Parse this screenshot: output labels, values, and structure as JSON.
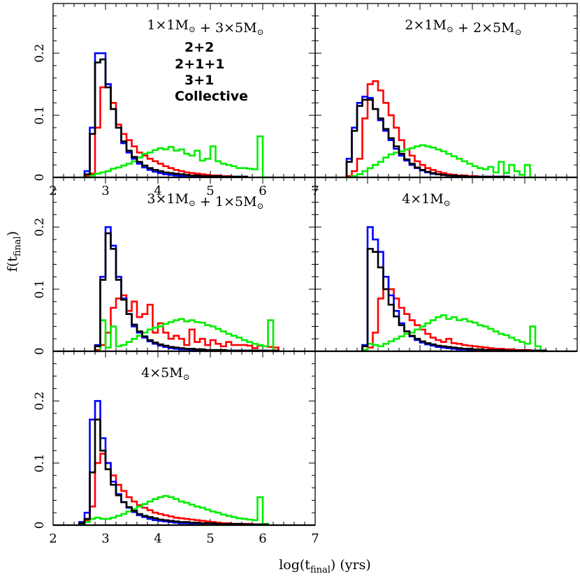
{
  "figure": {
    "ylabel": "f(t",
    "ylabel_sub": "final",
    "ylabel_tail": ")",
    "xlabel": "log(t",
    "xlabel_sub": "final",
    "xlabel_tail": ") (yrs)"
  },
  "legend": [
    {
      "label": "2+2",
      "color": "#ff0000"
    },
    {
      "label": "2+1+1",
      "color": "#0000ff"
    },
    {
      "label": "3+1",
      "color": "#00ee00"
    },
    {
      "label": "Collective",
      "color": "#000000"
    }
  ],
  "chart_data": [
    {
      "type": "line",
      "panel_title": "1×1M⊙ + 3×5M⊙",
      "xlim": [
        2,
        7
      ],
      "ylim": [
        0,
        0.28
      ],
      "xticks": [
        "2",
        "3",
        "4",
        "5",
        "6",
        "7"
      ],
      "yticks": [
        "0",
        "0.1",
        "0.2"
      ],
      "bin_width": 0.1,
      "series": [
        {
          "name": "2+2",
          "color": "#ff0000",
          "x0": 2.6,
          "values": [
            0.002,
            0.006,
            0.08,
            0.145,
            0.15,
            0.12,
            0.085,
            0.07,
            0.06,
            0.05,
            0.04,
            0.035,
            0.03,
            0.026,
            0.022,
            0.018,
            0.015,
            0.012,
            0.01,
            0.008,
            0.007,
            0.006,
            0.005,
            0.004,
            0.003,
            0.003,
            0.002,
            0.002,
            0.001,
            0.001,
            0.001
          ]
        },
        {
          "name": "2+1+1",
          "color": "#0000ff",
          "x0": 2.6,
          "values": [
            0.01,
            0.08,
            0.2,
            0.2,
            0.15,
            0.11,
            0.08,
            0.055,
            0.04,
            0.03,
            0.022,
            0.016,
            0.012,
            0.009,
            0.007,
            0.005,
            0.004,
            0.003,
            0.002,
            0.002,
            0.001,
            0.001,
            0.001,
            0.001,
            0.001,
            0.001,
            0.001,
            0.001,
            0.001,
            0.001,
            0.001
          ]
        },
        {
          "name": "3+1",
          "color": "#00ee00",
          "x0": 2.6,
          "values": [
            0,
            0.003,
            0.006,
            0.008,
            0.01,
            0.014,
            0.016,
            0.019,
            0.022,
            0.026,
            0.032,
            0.038,
            0.04,
            0.044,
            0.047,
            0.045,
            0.049,
            0.043,
            0.045,
            0.038,
            0.035,
            0.043,
            0.027,
            0.03,
            0.05,
            0.026,
            0.022,
            0.02,
            0.018,
            0.015,
            0.015,
            0.014,
            0.013,
            0.066,
            0
          ]
        },
        {
          "name": "Collective",
          "color": "#000000",
          "x0": 2.6,
          "values": [
            0.005,
            0.07,
            0.185,
            0.19,
            0.145,
            0.11,
            0.08,
            0.058,
            0.043,
            0.033,
            0.025,
            0.019,
            0.015,
            0.012,
            0.01,
            0.008,
            0.007,
            0.006,
            0.005,
            0.004,
            0.003,
            0.003,
            0.002,
            0.002,
            0.002,
            0.002,
            0.001,
            0.001,
            0.001,
            0.001,
            0.001
          ]
        }
      ]
    },
    {
      "type": "line",
      "panel_title": "2×1M⊙ + 2×5M⊙",
      "xlim": [
        2,
        7
      ],
      "ylim": [
        0,
        0.28
      ],
      "xticks": [],
      "yticks": [],
      "bin_width": 0.1,
      "series": [
        {
          "name": "2+2",
          "color": "#ff0000",
          "x0": 2.6,
          "values": [
            0.002,
            0.01,
            0.03,
            0.095,
            0.15,
            0.155,
            0.14,
            0.12,
            0.1,
            0.08,
            0.06,
            0.045,
            0.035,
            0.026,
            0.02,
            0.015,
            0.012,
            0.009,
            0.007,
            0.005,
            0.004,
            0.003,
            0.003,
            0.002,
            0.002,
            0.001,
            0.001,
            0.001,
            0.001,
            0.001,
            0.001
          ]
        },
        {
          "name": "2+1+1",
          "color": "#0000ff",
          "x0": 2.6,
          "values": [
            0.03,
            0.08,
            0.12,
            0.13,
            0.128,
            0.11,
            0.092,
            0.075,
            0.06,
            0.046,
            0.035,
            0.027,
            0.02,
            0.015,
            0.011,
            0.008,
            0.006,
            0.005,
            0.004,
            0.003,
            0.002,
            0.002,
            0.001,
            0.001,
            0.001,
            0.001,
            0.001,
            0.001,
            0.001,
            0.001,
            0.001
          ]
        },
        {
          "name": "3+1",
          "color": "#00ee00",
          "x0": 2.6,
          "values": [
            0,
            0.002,
            0.005,
            0.01,
            0.015,
            0.02,
            0.025,
            0.032,
            0.037,
            0.04,
            0.042,
            0.045,
            0.047,
            0.05,
            0.052,
            0.05,
            0.048,
            0.045,
            0.042,
            0.038,
            0.034,
            0.03,
            0.026,
            0.022,
            0.018,
            0.015,
            0.013,
            0.017,
            0.008,
            0.025,
            0.007,
            0.02,
            0.01,
            0.004,
            0.02,
            0
          ]
        },
        {
          "name": "Collective",
          "color": "#000000",
          "x0": 2.6,
          "values": [
            0.025,
            0.075,
            0.115,
            0.125,
            0.125,
            0.11,
            0.095,
            0.078,
            0.063,
            0.05,
            0.038,
            0.029,
            0.022,
            0.016,
            0.012,
            0.009,
            0.007,
            0.005,
            0.004,
            0.003,
            0.003,
            0.002,
            0.002,
            0.001,
            0.001,
            0.001,
            0.001,
            0.001,
            0.001,
            0.001,
            0.001
          ]
        }
      ]
    },
    {
      "type": "line",
      "panel_title": "3×1M⊙ + 1×5M⊙",
      "xlim": [
        2,
        7
      ],
      "ylim": [
        0,
        0.28
      ],
      "xticks": [],
      "yticks": [
        "0",
        "0.1",
        "0.2"
      ],
      "bin_width": 0.1,
      "series": [
        {
          "name": "2+2",
          "color": "#ff0000",
          "x0": 2.8,
          "values": [
            0.002,
            0.01,
            0.03,
            0.07,
            0.085,
            0.09,
            0.065,
            0.08,
            0.055,
            0.06,
            0.075,
            0.03,
            0.045,
            0.03,
            0.02,
            0.025,
            0.02,
            0.01,
            0.035,
            0.015,
            0.02,
            0.01,
            0.018,
            0.012,
            0.008,
            0.015,
            0.01,
            0.01,
            0.01,
            0.009,
            0.005,
            0.009,
            0.008,
            0.007,
            0.006
          ]
        },
        {
          "name": "2+1+1",
          "color": "#0000ff",
          "x0": 2.8,
          "values": [
            0.01,
            0.12,
            0.2,
            0.17,
            0.12,
            0.085,
            0.06,
            0.04,
            0.03,
            0.022,
            0.016,
            0.012,
            0.009,
            0.007,
            0.005,
            0.004,
            0.003,
            0.003,
            0.002,
            0.002,
            0.002,
            0.001,
            0.001,
            0.001,
            0.001,
            0.001,
            0.001,
            0.001,
            0.001,
            0.001,
            0.001,
            0.001,
            0.001,
            0.001,
            0.001
          ]
        },
        {
          "name": "3+1",
          "color": "#00ee00",
          "x0": 2.8,
          "values": [
            0,
            0.05,
            0.006,
            0.04,
            0.008,
            0.01,
            0.015,
            0.02,
            0.025,
            0.03,
            0.035,
            0.038,
            0.04,
            0.044,
            0.047,
            0.05,
            0.052,
            0.048,
            0.05,
            0.047,
            0.046,
            0.042,
            0.04,
            0.036,
            0.032,
            0.028,
            0.025,
            0.022,
            0.018,
            0.015,
            0.012,
            0.01,
            0.008,
            0.05,
            0
          ]
        },
        {
          "name": "Collective",
          "color": "#000000",
          "x0": 2.8,
          "values": [
            0.008,
            0.115,
            0.19,
            0.165,
            0.115,
            0.083,
            0.06,
            0.043,
            0.032,
            0.024,
            0.018,
            0.014,
            0.011,
            0.009,
            0.007,
            0.006,
            0.005,
            0.004,
            0.004,
            0.003,
            0.003,
            0.002,
            0.002,
            0.002,
            0.002,
            0.001,
            0.001,
            0.001,
            0.001,
            0.001,
            0.001,
            0.001,
            0.001,
            0.001,
            0.001
          ]
        }
      ]
    },
    {
      "type": "line",
      "panel_title": "4×1M⊙",
      "xlim": [
        2,
        7
      ],
      "ylim": [
        0,
        0.28
      ],
      "xticks": [],
      "yticks": [],
      "bin_width": 0.1,
      "series": [
        {
          "name": "2+2",
          "color": "#ff0000",
          "x0": 2.9,
          "values": [
            0.002,
            0.006,
            0.03,
            0.085,
            0.12,
            0.1,
            0.085,
            0.07,
            0.06,
            0.05,
            0.042,
            0.035,
            0.028,
            0.022,
            0.018,
            0.015,
            0.02,
            0.013,
            0.012,
            0.01,
            0.009,
            0.008,
            0.007,
            0.006,
            0.005,
            0.004,
            0.004,
            0.003,
            0.003,
            0.002,
            0.002,
            0.002,
            0.001,
            0.001,
            0.001
          ]
        },
        {
          "name": "2+1+1",
          "color": "#0000ff",
          "x0": 2.9,
          "values": [
            0.01,
            0.2,
            0.18,
            0.16,
            0.12,
            0.09,
            0.065,
            0.045,
            0.032,
            0.024,
            0.018,
            0.014,
            0.011,
            0.009,
            0.007,
            0.006,
            0.005,
            0.004,
            0.003,
            0.003,
            0.002,
            0.002,
            0.002,
            0.001,
            0.001,
            0.001,
            0.001,
            0.001,
            0.001,
            0.001,
            0.001,
            0.001,
            0.001,
            0.001,
            0.001
          ]
        },
        {
          "name": "3+1",
          "color": "#00ee00",
          "x0": 2.9,
          "values": [
            0.002,
            0.012,
            0.01,
            0.008,
            0.012,
            0.016,
            0.02,
            0.024,
            0.028,
            0.03,
            0.035,
            0.04,
            0.045,
            0.05,
            0.055,
            0.058,
            0.052,
            0.055,
            0.05,
            0.052,
            0.048,
            0.046,
            0.042,
            0.04,
            0.036,
            0.032,
            0.028,
            0.026,
            0.022,
            0.018,
            0.015,
            0.012,
            0.04,
            0.008,
            0
          ]
        },
        {
          "name": "Collective",
          "color": "#000000",
          "x0": 2.9,
          "values": [
            0.008,
            0.165,
            0.16,
            0.135,
            0.1,
            0.075,
            0.056,
            0.042,
            0.032,
            0.025,
            0.02,
            0.016,
            0.013,
            0.011,
            0.009,
            0.008,
            0.007,
            0.006,
            0.005,
            0.004,
            0.004,
            0.003,
            0.003,
            0.002,
            0.002,
            0.002,
            0.002,
            0.001,
            0.001,
            0.001,
            0.001,
            0.001,
            0.001,
            0.001,
            0.001
          ]
        }
      ]
    },
    {
      "type": "line",
      "panel_title": "4×5M⊙",
      "xlim": [
        2,
        7
      ],
      "ylim": [
        0,
        0.28
      ],
      "xticks": [
        "2",
        "3",
        "4",
        "5",
        "6",
        "7"
      ],
      "yticks": [
        "0",
        "0.1",
        "0.2"
      ],
      "bin_width": 0.1,
      "series": [
        {
          "name": "2+2",
          "color": "#ff0000",
          "x0": 2.5,
          "values": [
            0.003,
            0.008,
            0.03,
            0.1,
            0.115,
            0.1,
            0.08,
            0.065,
            0.055,
            0.045,
            0.038,
            0.032,
            0.028,
            0.024,
            0.02,
            0.018,
            0.016,
            0.014,
            0.012,
            0.011,
            0.01,
            0.009,
            0.008,
            0.007,
            0.006,
            0.005,
            0.004,
            0.003,
            0.003,
            0.002,
            0.002,
            0.002,
            0.002,
            0.001,
            0.001,
            0.001
          ]
        },
        {
          "name": "2+1+1",
          "color": "#0000ff",
          "x0": 2.5,
          "values": [
            0.005,
            0.02,
            0.17,
            0.2,
            0.14,
            0.1,
            0.07,
            0.05,
            0.037,
            0.028,
            0.021,
            0.016,
            0.013,
            0.01,
            0.008,
            0.007,
            0.006,
            0.005,
            0.004,
            0.003,
            0.003,
            0.002,
            0.002,
            0.002,
            0.002,
            0.001,
            0.001,
            0.001,
            0.001,
            0.001,
            0.001,
            0.001,
            0.001,
            0.001,
            0.001,
            0.001
          ]
        },
        {
          "name": "3+1",
          "color": "#00ee00",
          "x0": 2.5,
          "values": [
            0.001,
            0.005,
            0.01,
            0.012,
            0.01,
            0.01,
            0.012,
            0.015,
            0.018,
            0.022,
            0.026,
            0.03,
            0.034,
            0.038,
            0.042,
            0.045,
            0.047,
            0.045,
            0.042,
            0.038,
            0.036,
            0.033,
            0.03,
            0.028,
            0.025,
            0.022,
            0.02,
            0.017,
            0.015,
            0.013,
            0.011,
            0.01,
            0.009,
            0.008,
            0.045,
            0.002
          ]
        },
        {
          "name": "Collective",
          "color": "#000000",
          "x0": 2.5,
          "values": [
            0.003,
            0.01,
            0.085,
            0.17,
            0.12,
            0.09,
            0.065,
            0.048,
            0.037,
            0.029,
            0.023,
            0.018,
            0.015,
            0.013,
            0.011,
            0.009,
            0.008,
            0.007,
            0.006,
            0.005,
            0.005,
            0.004,
            0.004,
            0.003,
            0.003,
            0.003,
            0.002,
            0.002,
            0.002,
            0.002,
            0.002,
            0.001,
            0.001,
            0.001,
            0.001,
            0.001
          ]
        }
      ]
    }
  ]
}
